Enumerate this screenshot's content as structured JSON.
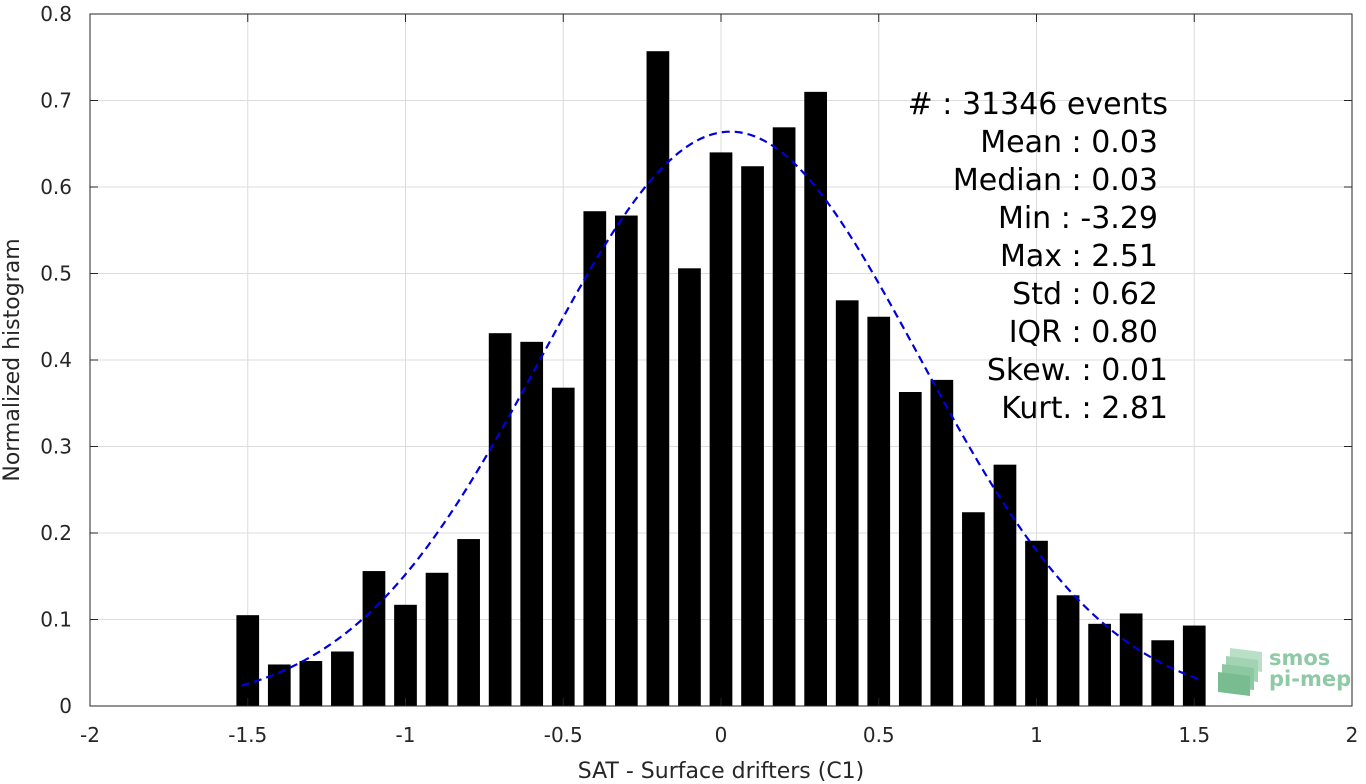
{
  "chart_data": {
    "type": "bar",
    "xlabel": "SAT - Surface drifters (C1)",
    "ylabel": "Normalized histogram",
    "xlim": [
      -2,
      2
    ],
    "ylim": [
      0,
      0.8
    ],
    "x_ticks": [
      -2,
      -1.5,
      -1,
      -0.5,
      0,
      0.5,
      1,
      1.5,
      2
    ],
    "x_tick_labels": [
      "-2",
      "-1.5",
      "-1",
      "-0.5",
      "0",
      "0.5",
      "1",
      "1.5",
      "2"
    ],
    "y_ticks": [
      0,
      0.1,
      0.2,
      0.3,
      0.4,
      0.5,
      0.6,
      0.7,
      0.8
    ],
    "y_tick_labels": [
      "0",
      "0.1",
      "0.2",
      "0.3",
      "0.4",
      "0.5",
      "0.6",
      "0.7",
      "0.8"
    ],
    "grid": true,
    "bar_color": "#000000",
    "bin_width": 0.1,
    "bins": [
      {
        "x": -1.5,
        "y": 0.105
      },
      {
        "x": -1.4,
        "y": 0.048
      },
      {
        "x": -1.3,
        "y": 0.052
      },
      {
        "x": -1.2,
        "y": 0.063
      },
      {
        "x": -1.1,
        "y": 0.156
      },
      {
        "x": -1.0,
        "y": 0.117
      },
      {
        "x": -0.9,
        "y": 0.154
      },
      {
        "x": -0.8,
        "y": 0.193
      },
      {
        "x": -0.7,
        "y": 0.431
      },
      {
        "x": -0.6,
        "y": 0.421
      },
      {
        "x": -0.5,
        "y": 0.368
      },
      {
        "x": -0.4,
        "y": 0.572
      },
      {
        "x": -0.3,
        "y": 0.567
      },
      {
        "x": -0.2,
        "y": 0.757
      },
      {
        "x": -0.1,
        "y": 0.506
      },
      {
        "x": 0.0,
        "y": 0.64
      },
      {
        "x": 0.1,
        "y": 0.624
      },
      {
        "x": 0.2,
        "y": 0.669
      },
      {
        "x": 0.3,
        "y": 0.71
      },
      {
        "x": 0.4,
        "y": 0.469
      },
      {
        "x": 0.5,
        "y": 0.45
      },
      {
        "x": 0.6,
        "y": 0.363
      },
      {
        "x": 0.7,
        "y": 0.377
      },
      {
        "x": 0.8,
        "y": 0.224
      },
      {
        "x": 0.9,
        "y": 0.279
      },
      {
        "x": 1.0,
        "y": 0.191
      },
      {
        "x": 1.1,
        "y": 0.128
      },
      {
        "x": 1.2,
        "y": 0.095
      },
      {
        "x": 1.3,
        "y": 0.107
      },
      {
        "x": 1.4,
        "y": 0.076
      },
      {
        "x": 1.5,
        "y": 0.093
      }
    ],
    "fit_curve": {
      "type": "gaussian",
      "style": "dashed",
      "color": "#0000dd",
      "mean": 0.03,
      "std": 0.6,
      "peak": 0.664,
      "x_range": [
        -1.52,
        1.52
      ]
    },
    "annotations": [
      "#  : 31346 events",
      "Mean : 0.03",
      "Median : 0.03",
      "Min : -3.29",
      "Max : 2.51",
      "Std : 0.62",
      "IQR : 0.80",
      "Skew. : 0.01",
      "Kurt. : 2.81"
    ]
  },
  "logo": {
    "name": "smos-pi-mep-logo",
    "line1": "smos",
    "line2": "pi-mep",
    "color": "#8fc9a6"
  }
}
